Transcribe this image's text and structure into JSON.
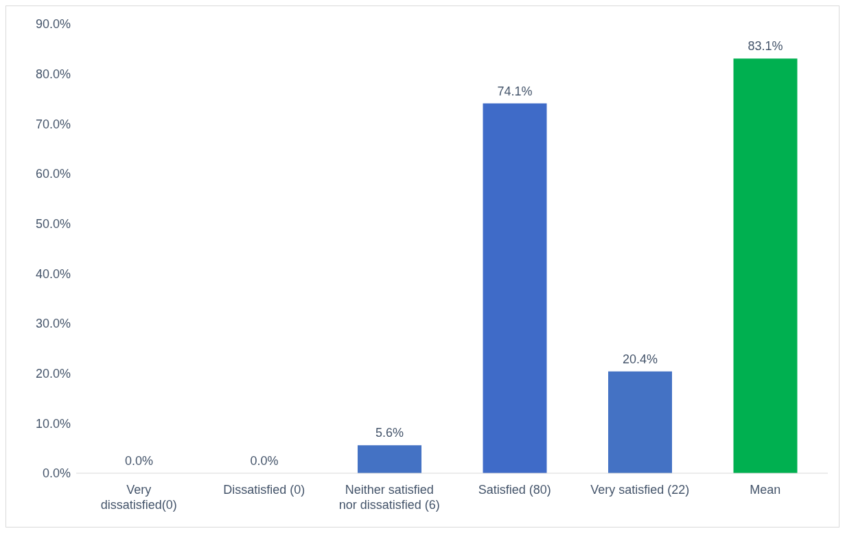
{
  "chart_data": {
    "type": "bar",
    "categories": [
      "Very dissatisfied(0)",
      "Dissatisfied (0)",
      "Neither satisfied nor dissatisfied (6)",
      "Satisfied (80)",
      "Very satisfied (22)",
      "Mean"
    ],
    "values": [
      0,
      0,
      5.6,
      74.1,
      20.4,
      83.1
    ],
    "colors": [
      "#4472c4",
      "#4472c4",
      "#4472c4",
      "#3f6bc8",
      "#4472c4",
      "#00b050"
    ],
    "value_labels": [
      "0.0%",
      "0.0%",
      "5.6%",
      "74.1%",
      "20.4%",
      "83.1%"
    ],
    "ylim": [
      0,
      90
    ],
    "yticks": [
      {
        "value": 0,
        "label": "0.0%"
      },
      {
        "value": 10,
        "label": "10.0%"
      },
      {
        "value": 20,
        "label": "20.0%"
      },
      {
        "value": 30,
        "label": "30.0%"
      },
      {
        "value": 40,
        "label": "40.0%"
      },
      {
        "value": 50,
        "label": "50.0%"
      },
      {
        "value": 60,
        "label": "60.0%"
      },
      {
        "value": 70,
        "label": "70.0%"
      },
      {
        "value": 80,
        "label": "80.0%"
      },
      {
        "value": 90,
        "label": "90.0%"
      }
    ],
    "grid": false,
    "legend": false
  }
}
